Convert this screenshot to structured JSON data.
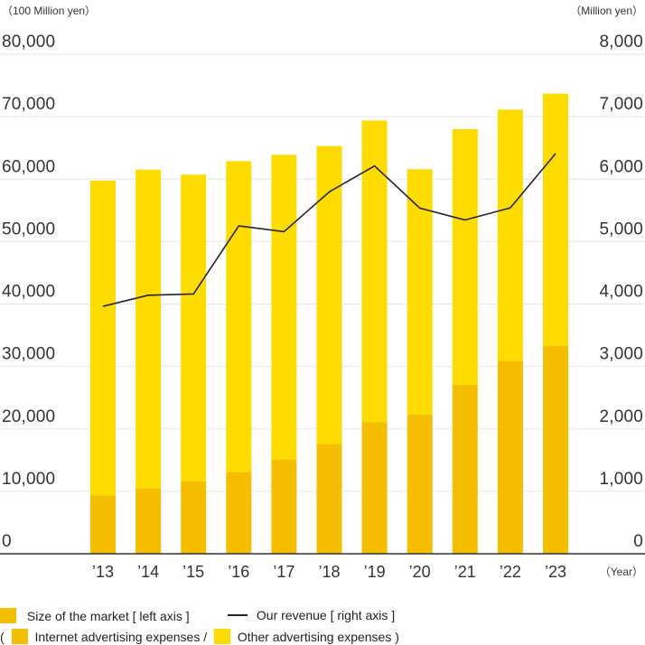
{
  "chart_data": {
    "type": "bar",
    "stacked": true,
    "left_unit": "（100 Million yen）",
    "right_unit": "（Million yen）",
    "x_unit": "（Year）",
    "categories": [
      "’13",
      "’14",
      "’15",
      "’16",
      "’17",
      "’18",
      "’19",
      "’20",
      "’21",
      "’22",
      "’23"
    ],
    "left_ticks": [
      "0",
      "10,000",
      "20,000",
      "30,000",
      "40,000",
      "50,000",
      "60,000",
      "70,000",
      "80,000"
    ],
    "right_ticks": [
      "0",
      "1,000",
      "2,000",
      "3,000",
      "4,000",
      "5,000",
      "6,000",
      "7,000",
      "8,000"
    ],
    "ylim_left": [
      0,
      80000
    ],
    "ylim_right": [
      0,
      8000
    ],
    "series": [
      {
        "key": "internet",
        "axis": "left",
        "values": [
          9381,
          10519,
          11594,
          13100,
          15094,
          17589,
          21048,
          22290,
          27052,
          30912,
          33330
        ],
        "color": "#F5BE00"
      },
      {
        "key": "other",
        "axis": "left",
        "values": [
          50381,
          51003,
          49116,
          49780,
          48813,
          47711,
          48333,
          39304,
          40946,
          40217,
          40366
        ],
        "color": "#FFDC00"
      },
      {
        "key": "revenue",
        "axis": "right",
        "type": "line",
        "values": [
          3963,
          4140,
          4160,
          5251,
          5158,
          5795,
          6211,
          5535,
          5345,
          5539,
          6409
        ],
        "color": "#222222"
      }
    ]
  },
  "legend": {
    "market_label": "Size of the market [ left axis ]",
    "revenue_label": "Our revenue [ right axis ]",
    "open_paren": "(",
    "internet_label": "Internet advertising expenses /",
    "other_label": "Other advertising expenses )"
  }
}
